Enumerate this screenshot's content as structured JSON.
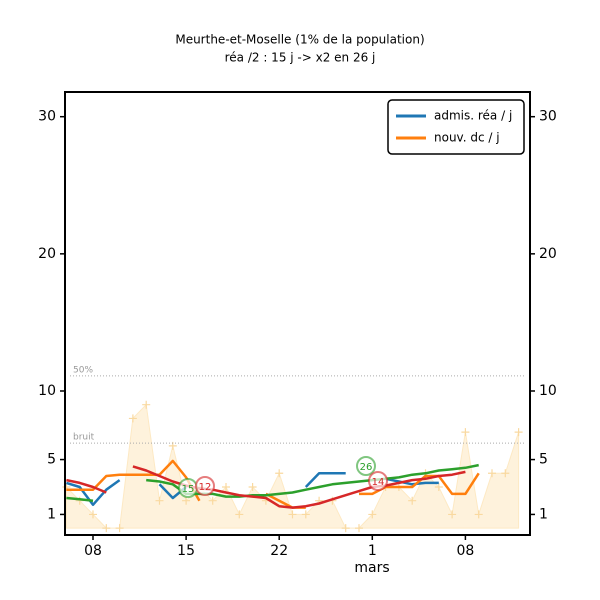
{
  "chart_data": {
    "type": "line",
    "title": "Meurthe-et-Moselle (1% de la population)",
    "subtitle": "réa /2 : 15 j -> x2 en 26 j",
    "x_label": "mars",
    "categories": [
      null,
      null,
      "08",
      null,
      null,
      null,
      null,
      null,
      null,
      "15",
      null,
      null,
      null,
      null,
      null,
      null,
      "22",
      null,
      null,
      null,
      null,
      null,
      null,
      "1",
      null,
      null,
      null,
      null,
      null,
      null,
      "08",
      null,
      null,
      null,
      null
    ],
    "ylim": [
      -0.5,
      31.8
    ],
    "yticks": [
      1,
      5,
      10,
      20,
      30
    ],
    "legend": "upper right",
    "background": {
      "color": "#fde9c4",
      "values": [
        3,
        2,
        1,
        0,
        0,
        8,
        9,
        2,
        6,
        2,
        3,
        2,
        3,
        1,
        3,
        2,
        4,
        1,
        1,
        2,
        2,
        0,
        0,
        1,
        3,
        3,
        2,
        4,
        3,
        1,
        7,
        1,
        4,
        4,
        7
      ]
    },
    "reference_lines": [
      {
        "label": "50%",
        "value": 11.1
      },
      {
        "label": "bruit",
        "value": 6.2
      }
    ],
    "series": [
      {
        "name": "admis. réa / j",
        "color": "#1f77b4",
        "values": [
          3.3,
          3.0,
          1.7,
          2.8,
          3.5,
          null,
          null,
          3.2,
          2.2,
          3.0,
          null,
          null,
          null,
          null,
          null,
          null,
          null,
          null,
          3.0,
          4.0,
          4.0,
          4.0,
          null,
          null,
          3.6,
          3.4,
          3.2,
          3.3,
          3.3,
          null,
          null,
          null,
          null,
          null,
          null
        ]
      },
      {
        "name": "nouv. dc / j",
        "color": "#ff7f0e",
        "values": [
          2.8,
          2.8,
          2.8,
          3.8,
          3.9,
          3.9,
          3.9,
          3.9,
          4.9,
          3.7,
          2.0,
          null,
          null,
          null,
          null,
          2.5,
          2.0,
          1.5,
          1.5,
          null,
          null,
          null,
          2.5,
          2.5,
          3.0,
          3.0,
          3.0,
          3.8,
          3.8,
          2.5,
          2.5,
          4.0,
          null,
          null,
          null
        ]
      },
      {
        "color": "#2ca02c",
        "values": [
          2.2,
          2.1,
          2.0,
          null,
          null,
          null,
          3.5,
          3.4,
          3.2,
          2.5,
          2.5,
          2.5,
          2.3,
          2.3,
          2.4,
          2.4,
          2.5,
          2.6,
          2.8,
          3.0,
          3.2,
          3.3,
          3.4,
          3.5,
          3.6,
          3.7,
          3.9,
          4.0,
          4.2,
          4.3,
          4.4,
          4.6,
          null,
          null,
          null
        ]
      },
      {
        "color": "#d62728",
        "values": [
          3.5,
          3.3,
          3.0,
          2.6,
          null,
          4.5,
          4.2,
          3.8,
          3.4,
          3.1,
          2.9,
          2.8,
          2.6,
          2.4,
          2.3,
          2.2,
          1.6,
          1.5,
          1.6,
          1.8,
          2.1,
          2.4,
          2.7,
          3.0,
          3.1,
          3.3,
          3.5,
          3.6,
          3.8,
          3.9,
          4.1,
          null,
          null,
          null,
          null
        ]
      }
    ],
    "annotations": [
      {
        "text": "15",
        "color": "#2ca02c"
      },
      {
        "text": "12",
        "color": "#d62728"
      },
      {
        "text": "26",
        "color": "#2ca02c"
      },
      {
        "text": "14",
        "color": "#d62728"
      }
    ]
  }
}
